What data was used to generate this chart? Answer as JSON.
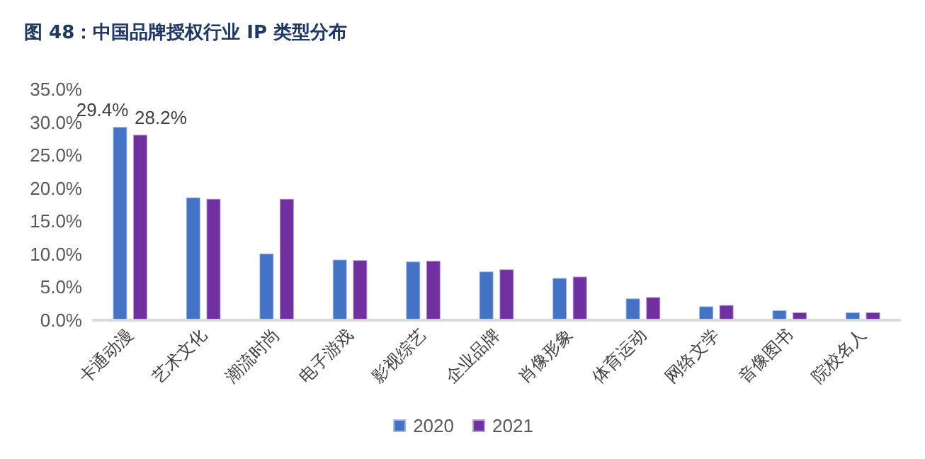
{
  "chart_data": {
    "type": "bar",
    "title": "图 48：中国品牌授权行业 IP 类型分布",
    "categories": [
      "卡通动漫",
      "艺术文化",
      "潮流时尚",
      "电子游戏",
      "影视综艺",
      "企业品牌",
      "肖像形象",
      "体育运动",
      "网络文学",
      "音像图书",
      "院校名人"
    ],
    "series": [
      {
        "name": "2020",
        "color": "#4472c4",
        "values": [
          29.4,
          18.7,
          10.2,
          9.3,
          9.0,
          7.5,
          6.5,
          3.4,
          2.2,
          1.6,
          1.3
        ],
        "value_labels": [
          "29.4%",
          null,
          null,
          null,
          null,
          null,
          null,
          null,
          null,
          null,
          null
        ]
      },
      {
        "name": "2021",
        "color": "#7030a0",
        "values": [
          28.2,
          18.5,
          18.5,
          9.2,
          9.1,
          7.8,
          6.7,
          3.6,
          2.4,
          1.3,
          1.3
        ],
        "value_labels": [
          "28.2%",
          null,
          null,
          null,
          null,
          null,
          null,
          null,
          null,
          null,
          null
        ]
      }
    ],
    "ylim": [
      0,
      35
    ],
    "yticks": [
      {
        "value": 0,
        "label": "0.0%"
      },
      {
        "value": 5,
        "label": "5.0%"
      },
      {
        "value": 10,
        "label": "10.0%"
      },
      {
        "value": 15,
        "label": "15.0%"
      },
      {
        "value": 20,
        "label": "20.0%"
      },
      {
        "value": 25,
        "label": "25.0%"
      },
      {
        "value": 30,
        "label": "30.0%"
      },
      {
        "value": 35,
        "label": "35.0%"
      }
    ],
    "grid": false,
    "legend": "bottom"
  }
}
